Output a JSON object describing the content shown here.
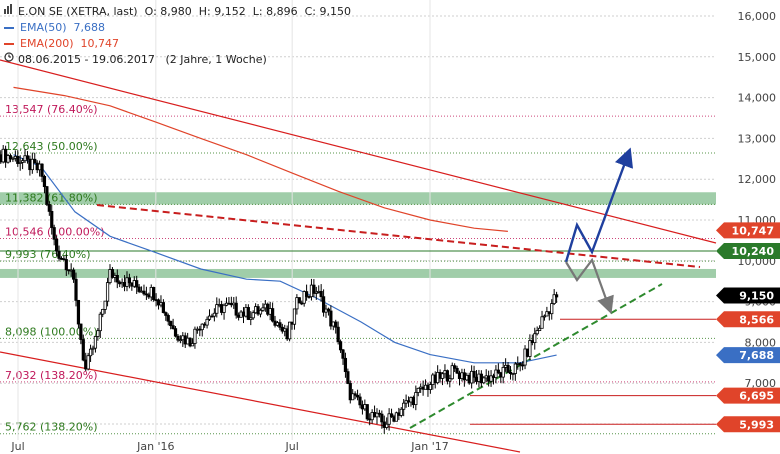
{
  "chart_data": {
    "type": "candlestick",
    "instrument": "E.ON SE (XETRA, last)",
    "ohlc": {
      "O": "8,980",
      "H": "9,152",
      "L": "8,896",
      "C": "9,150"
    },
    "ohlc_labels": {
      "O": "O:",
      "H": "H:",
      "L": "L:",
      "C": "C:"
    },
    "ema50": {
      "label": "EMA(50)",
      "value": "7,688",
      "color": "#3a6fc4"
    },
    "ema200": {
      "label": "EMA(200)",
      "value": "10,747",
      "color": "#e0442a"
    },
    "period": "08.06.2015 - 19.06.2017",
    "period_note": "(2 Jahre, 1 Woche)",
    "y_ticks": [
      {
        "value": 16,
        "label": "16,000"
      },
      {
        "value": 15,
        "label": "15,000"
      },
      {
        "value": 14,
        "label": "14,000"
      },
      {
        "value": 13,
        "label": "13,000"
      },
      {
        "value": 12,
        "label": "12,000"
      },
      {
        "value": 11,
        "label": "11,000"
      },
      {
        "value": 10,
        "label": "10,000"
      },
      {
        "value": 9,
        "label": "9,000"
      },
      {
        "value": 8,
        "label": "8,000"
      },
      {
        "value": 7,
        "label": "7,000"
      },
      {
        "value": 6,
        "label": "6,000"
      }
    ],
    "x_ticks": [
      {
        "date": "2015-07-01",
        "label": "Jul"
      },
      {
        "date": "2016-01-01",
        "label": "Jan '16"
      },
      {
        "date": "2016-07-01",
        "label": "Jul"
      },
      {
        "date": "2017-01-01",
        "label": "Jan '17"
      }
    ],
    "fib_levels": [
      {
        "value": 13.547,
        "label": "13,547 (76.40%)",
        "color": "#c0185a"
      },
      {
        "value": 12.643,
        "label": "12,643 (50.00%)",
        "color": "#2e7a1e"
      },
      {
        "value": 11.382,
        "label": "11,382 (61.80%)",
        "color": "#2e7a1e"
      },
      {
        "value": 10.546,
        "label": "10,546 (100.00%)",
        "color": "#c0185a"
      },
      {
        "value": 9.993,
        "label": "9,993 (76.40%)",
        "color": "#2e7a1e"
      },
      {
        "value": 8.098,
        "label": "8,098 (100.00%)",
        "color": "#2e7a1e"
      },
      {
        "value": 7.032,
        "label": "7,032 (138.20%)",
        "color": "#c0185a"
      },
      {
        "value": 5.762,
        "label": "5,762 (138.20%)",
        "color": "#2e7a1e"
      }
    ],
    "price_tags": [
      {
        "value": 10.747,
        "label": "10,747",
        "bg": "#e0442a"
      },
      {
        "value": 10.24,
        "label": "10,240",
        "bg": "#2a7a2a"
      },
      {
        "value": 9.15,
        "label": "9,150",
        "bg": "#000000"
      },
      {
        "value": 8.566,
        "label": "8,566",
        "bg": "#e0442a"
      },
      {
        "value": 7.688,
        "label": "7,688",
        "bg": "#3a6fc4"
      },
      {
        "value": 6.695,
        "label": "6,695",
        "bg": "#e0442a"
      },
      {
        "value": 5.993,
        "label": "5,993",
        "bg": "#e0442a"
      }
    ],
    "zones": [
      {
        "from": 11.38,
        "to": 11.68,
        "color": "#8fc49a"
      },
      {
        "from": 9.58,
        "to": 9.8,
        "color": "#8fc49a"
      }
    ],
    "ema200_series": [
      {
        "date": "2015-06-25",
        "value": 14.25
      },
      {
        "date": "2015-09-01",
        "value": 14.05
      },
      {
        "date": "2015-11-01",
        "value": 13.8
      },
      {
        "date": "2016-01-01",
        "value": 13.4
      },
      {
        "date": "2016-03-01",
        "value": 13.0
      },
      {
        "date": "2016-05-01",
        "value": 12.6
      },
      {
        "date": "2016-07-01",
        "value": 12.15
      },
      {
        "date": "2016-09-01",
        "value": 11.7
      },
      {
        "date": "2016-11-01",
        "value": 11.3
      },
      {
        "date": "2017-01-01",
        "value": 11.0
      },
      {
        "date": "2017-03-01",
        "value": 10.8
      },
      {
        "date": "2017-04-15",
        "value": 10.72
      }
    ],
    "ema50_series": [
      {
        "date": "2015-06-25",
        "value": 12.6
      },
      {
        "date": "2015-08-01",
        "value": 12.3
      },
      {
        "date": "2015-09-15",
        "value": 11.2
      },
      {
        "date": "2015-11-01",
        "value": 10.6
      },
      {
        "date": "2016-01-01",
        "value": 10.2
      },
      {
        "date": "2016-03-01",
        "value": 9.8
      },
      {
        "date": "2016-05-01",
        "value": 9.55
      },
      {
        "date": "2016-06-15",
        "value": 9.5
      },
      {
        "date": "2016-08-01",
        "value": 9.1
      },
      {
        "date": "2016-10-01",
        "value": 8.5
      },
      {
        "date": "2016-11-15",
        "value": 8.0
      },
      {
        "date": "2017-01-01",
        "value": 7.7
      },
      {
        "date": "2017-03-01",
        "value": 7.5
      },
      {
        "date": "2017-05-01",
        "value": 7.5
      },
      {
        "date": "2017-06-19",
        "value": 7.688
      }
    ],
    "price_series": [
      {
        "date": "2015-06-08",
        "value": 12.6
      },
      {
        "date": "2015-07-01",
        "value": 12.5
      },
      {
        "date": "2015-08-01",
        "value": 12.2
      },
      {
        "date": "2015-08-20",
        "value": 10.3
      },
      {
        "date": "2015-09-10",
        "value": 9.8
      },
      {
        "date": "2015-09-29",
        "value": 7.3
      },
      {
        "date": "2015-10-15",
        "value": 8.2
      },
      {
        "date": "2015-11-01",
        "value": 9.7
      },
      {
        "date": "2015-12-01",
        "value": 9.4
      },
      {
        "date": "2016-01-01",
        "value": 9.2
      },
      {
        "date": "2016-01-25",
        "value": 8.3
      },
      {
        "date": "2016-02-15",
        "value": 8.0
      },
      {
        "date": "2016-03-01",
        "value": 8.5
      },
      {
        "date": "2016-04-01",
        "value": 8.9
      },
      {
        "date": "2016-05-01",
        "value": 8.7
      },
      {
        "date": "2016-06-01",
        "value": 8.8
      },
      {
        "date": "2016-06-24",
        "value": 8.1
      },
      {
        "date": "2016-07-10",
        "value": 9.1
      },
      {
        "date": "2016-08-01",
        "value": 9.3
      },
      {
        "date": "2016-08-15",
        "value": 8.8
      },
      {
        "date": "2016-09-01",
        "value": 8.1
      },
      {
        "date": "2016-09-14",
        "value": 6.8
      },
      {
        "date": "2016-10-01",
        "value": 6.4
      },
      {
        "date": "2016-11-01",
        "value": 6.0
      },
      {
        "date": "2016-12-01",
        "value": 6.5
      },
      {
        "date": "2017-01-01",
        "value": 7.0
      },
      {
        "date": "2017-02-01",
        "value": 7.3
      },
      {
        "date": "2017-03-01",
        "value": 7.1
      },
      {
        "date": "2017-04-01",
        "value": 7.2
      },
      {
        "date": "2017-05-01",
        "value": 7.4
      },
      {
        "date": "2017-06-01",
        "value": 8.6
      },
      {
        "date": "2017-06-19",
        "value": 9.15
      }
    ]
  }
}
